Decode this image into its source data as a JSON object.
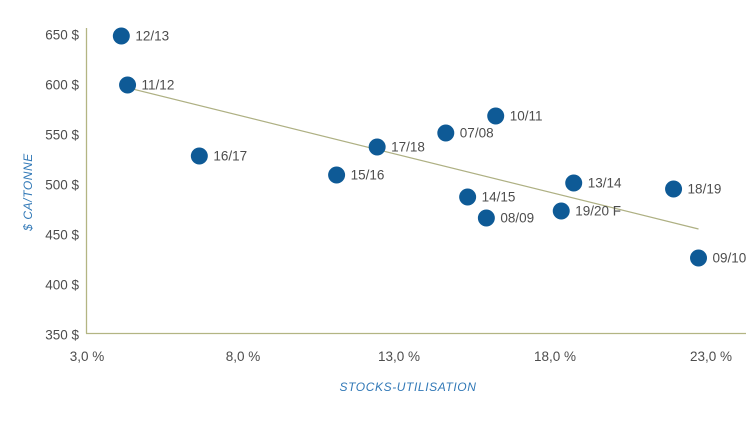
{
  "chart_data": {
    "type": "scatter",
    "xlabel": "STOCKS-UTILISATION",
    "ylabel": "$ CA/TONNE",
    "xlim": [
      3,
      24.1
    ],
    "ylim": [
      350,
      655
    ],
    "grid": false,
    "legend": "none",
    "x_ticks": [
      {
        "value": 3,
        "label": "3,0 %"
      },
      {
        "value": 8,
        "label": "8,0 %"
      },
      {
        "value": 13,
        "label": "13,0 %"
      },
      {
        "value": 18,
        "label": "18,0 %"
      },
      {
        "value": 23,
        "label": "23,0 %"
      }
    ],
    "y_ticks": [
      {
        "value": 350,
        "label": "350 $"
      },
      {
        "value": 400,
        "label": "400 $"
      },
      {
        "value": 450,
        "label": "450 $"
      },
      {
        "value": 500,
        "label": "500 $"
      },
      {
        "value": 550,
        "label": "550 $"
      },
      {
        "value": 600,
        "label": "600 $"
      },
      {
        "value": 650,
        "label": "650 $"
      }
    ],
    "points": [
      {
        "label": "12/13",
        "x": 4.1,
        "y": 649
      },
      {
        "label": "11/12",
        "x": 4.3,
        "y": 600
      },
      {
        "label": "16/17",
        "x": 6.6,
        "y": 529
      },
      {
        "label": "15/16",
        "x": 11.0,
        "y": 510
      },
      {
        "label": "17/18",
        "x": 12.3,
        "y": 538
      },
      {
        "label": "07/08",
        "x": 14.5,
        "y": 552
      },
      {
        "label": "10/11",
        "x": 16.1,
        "y": 569
      },
      {
        "label": "14/15",
        "x": 15.2,
        "y": 488
      },
      {
        "label": "08/09",
        "x": 15.8,
        "y": 467
      },
      {
        "label": "13/14",
        "x": 18.6,
        "y": 502
      },
      {
        "label": "19/20 F",
        "x": 18.2,
        "y": 474
      },
      {
        "label": "18/19",
        "x": 21.8,
        "y": 496
      },
      {
        "label": "09/10",
        "x": 22.6,
        "y": 427
      }
    ],
    "trend_line": {
      "x1": 4.2,
      "y1": 598,
      "x2": 22.6,
      "y2": 456
    },
    "colors": {
      "marker": "#0e5a96",
      "axis_line": "#b3b583",
      "trend_line": "#aeb083",
      "tick_label": "#4d4d4d",
      "axis_title": "#3279b7",
      "background": "#ffffff"
    }
  }
}
